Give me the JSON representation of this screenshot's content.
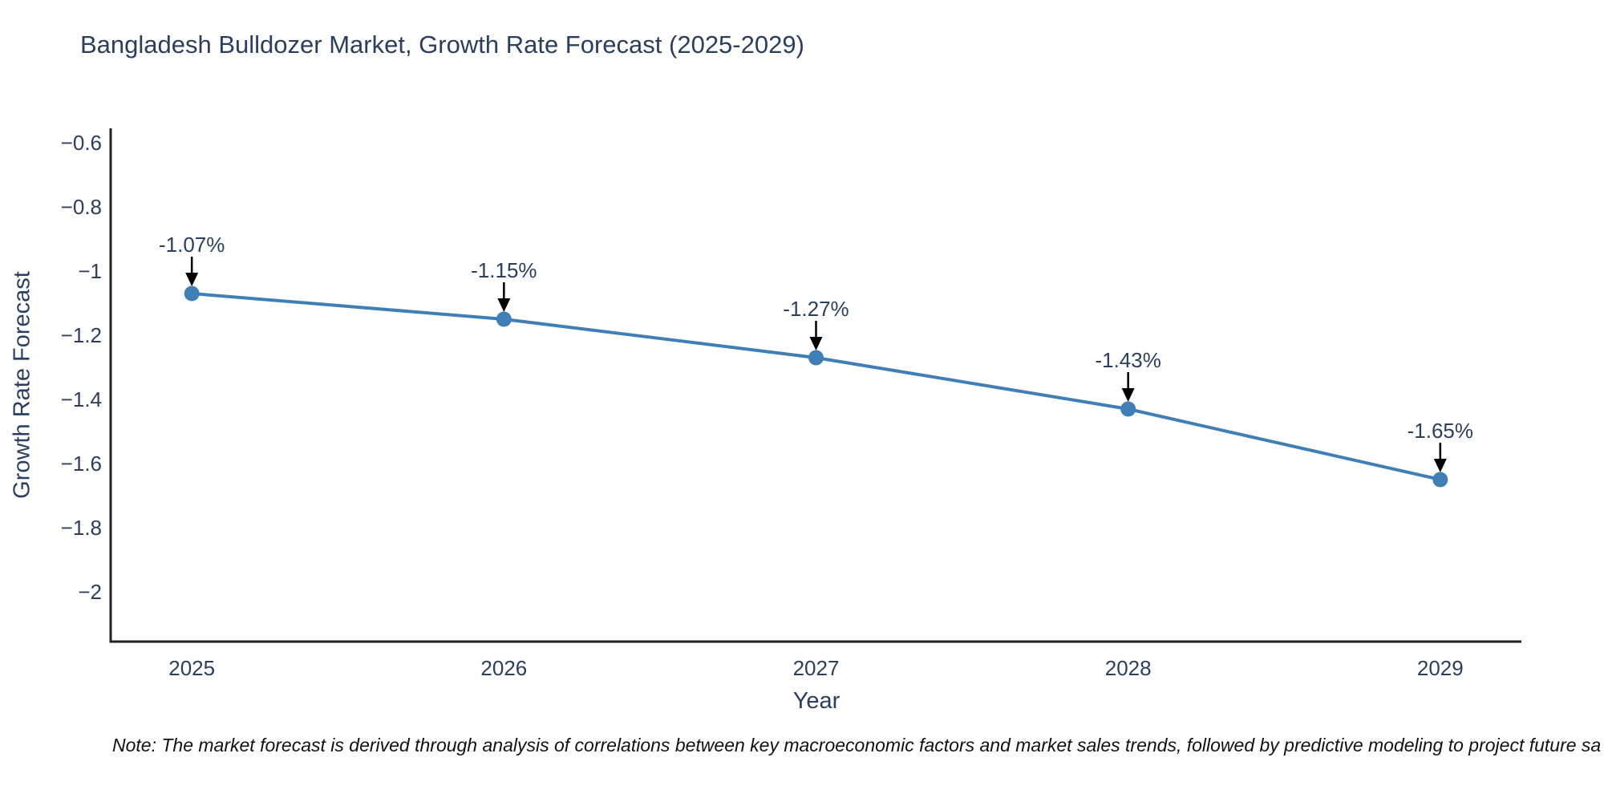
{
  "chart_data": {
    "type": "line",
    "title": "Bangladesh Bulldozer Market, Growth Rate Forecast (2025-2029)",
    "xlabel": "Year",
    "ylabel": "Growth Rate Forecast",
    "categories": [
      2025,
      2026,
      2027,
      2028,
      2029
    ],
    "series": [
      {
        "name": "Growth Rate Forecast",
        "values": [
          -1.07,
          -1.15,
          -1.27,
          -1.43,
          -1.65
        ]
      }
    ],
    "point_labels": [
      "-1.07%",
      "-1.15%",
      "-1.27%",
      "-1.43%",
      "-1.65%"
    ],
    "yticks": [
      -0.6,
      -0.8,
      -1,
      -1.2,
      -1.4,
      -1.6,
      -1.8,
      -2
    ],
    "ytick_labels": [
      "−0.6",
      "−0.8",
      "−1",
      "−1.2",
      "−1.4",
      "−1.6",
      "−1.8",
      "−2"
    ],
    "xtick_labels": [
      "2025",
      "2026",
      "2027",
      "2028",
      "2029"
    ],
    "xlim": [
      2024.74,
      2029.26
    ],
    "ylim": [
      -2.155,
      -0.555
    ],
    "grid": false,
    "legend": false
  },
  "note": {
    "text": "Note: The market forecast is derived through analysis of correlations between key macroeconomic factors and market sales trends, followed by predictive modeling to project future sa"
  },
  "colors": {
    "text": "#2a3f5f",
    "axis": "#222222",
    "line": "#3f7fb5",
    "marker": "#3f7fb5",
    "arrow": "#000000",
    "note": "#111111",
    "background": "#ffffff"
  }
}
